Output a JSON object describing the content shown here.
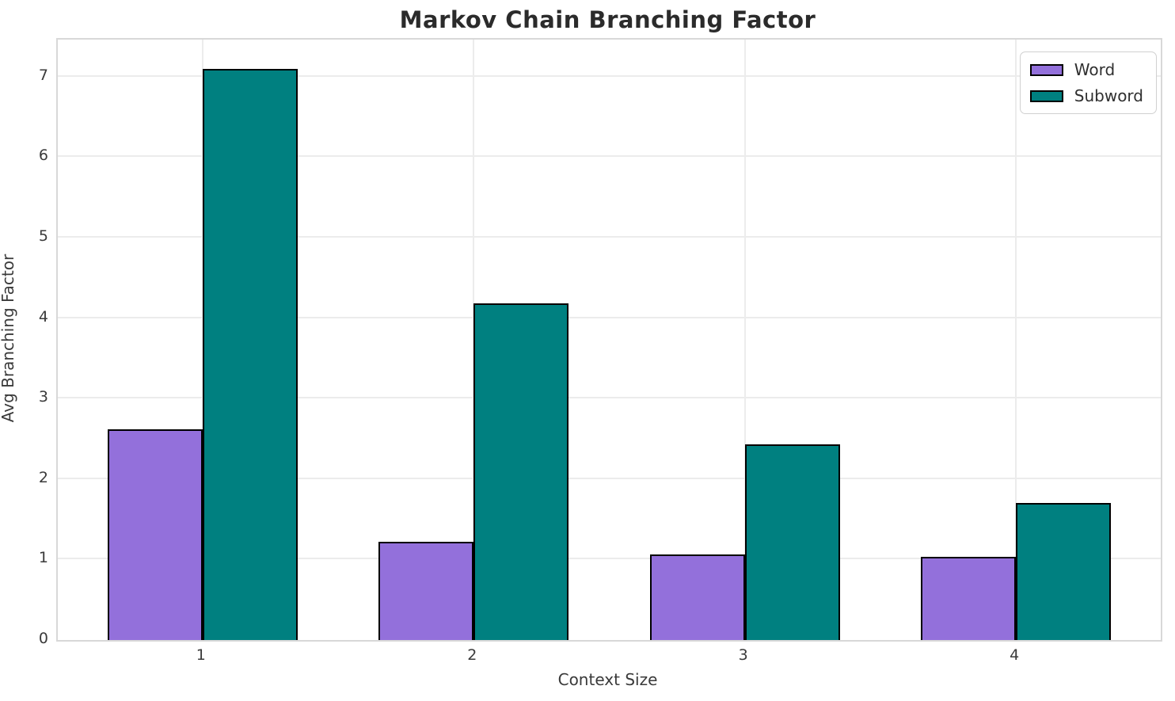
{
  "title": "Markov Chain Branching Factor",
  "chart_data": {
    "type": "bar",
    "title": "Markov Chain Branching Factor",
    "xlabel": "Context Size",
    "ylabel": "Avg Branching Factor",
    "categories": [
      "1",
      "2",
      "3",
      "4"
    ],
    "x_values": [
      1,
      2,
      3,
      4
    ],
    "series": [
      {
        "name": "Word",
        "color": "#9370db",
        "values": [
          2.62,
          1.22,
          1.06,
          1.03
        ]
      },
      {
        "name": "Subword",
        "color": "#008080",
        "values": [
          7.1,
          4.18,
          2.43,
          1.7
        ]
      }
    ],
    "bar_width": 0.35,
    "bar_edge_color": "#000000",
    "ylim": [
      0,
      7.46
    ],
    "xlim": [
      0.466,
      4.534
    ],
    "yticks": [
      0,
      1,
      2,
      3,
      4,
      5,
      6,
      7
    ],
    "grid": true,
    "grid_color": "#ececec",
    "axis_color": "#d8d8d8",
    "text_color": "#3a3a3a",
    "title_color": "#2b2b2b",
    "legend_position": "upper right"
  },
  "legend": {
    "items": [
      {
        "label": "Word",
        "color": "#9370db"
      },
      {
        "label": "Subword",
        "color": "#008080"
      }
    ]
  }
}
